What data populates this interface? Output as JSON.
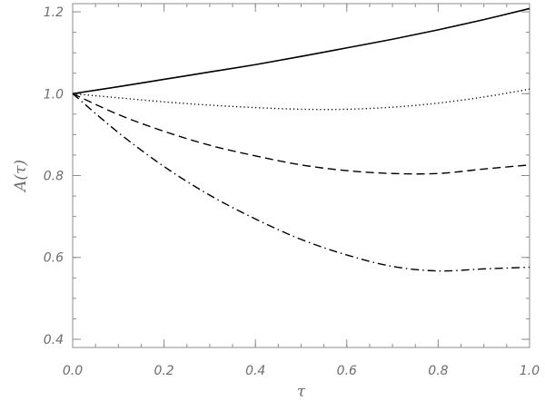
{
  "chart_data": {
    "type": "line",
    "title": "",
    "xlabel": "τ",
    "ylabel": "A(τ)",
    "xlim": [
      0.0,
      1.0
    ],
    "ylim": [
      0.38,
      1.22
    ],
    "x_ticks": [
      "0.0",
      "0.2",
      "0.4",
      "0.6",
      "0.8",
      "1.0"
    ],
    "y_ticks": [
      "0.4",
      "0.6",
      "0.8",
      "1.0",
      "1.2"
    ],
    "grid": false,
    "legend": false,
    "x": [
      0.0,
      0.1,
      0.2,
      0.3,
      0.4,
      0.5,
      0.6,
      0.7,
      0.8,
      0.9,
      1.0
    ],
    "series": [
      {
        "style": "solid",
        "values": [
          1.0,
          1.017,
          1.035,
          1.053,
          1.071,
          1.091,
          1.112,
          1.133,
          1.156,
          1.181,
          1.208
        ]
      },
      {
        "style": "dotted",
        "values": [
          1.0,
          0.99,
          0.98,
          0.972,
          0.966,
          0.962,
          0.962,
          0.967,
          0.977,
          0.992,
          1.011
        ]
      },
      {
        "style": "dashed",
        "values": [
          1.0,
          0.949,
          0.908,
          0.874,
          0.848,
          0.826,
          0.812,
          0.805,
          0.805,
          0.816,
          0.826
        ]
      },
      {
        "style": "dash-dot",
        "values": [
          1.0,
          0.905,
          0.822,
          0.752,
          0.694,
          0.644,
          0.606,
          0.578,
          0.567,
          0.572,
          0.576
        ]
      }
    ],
    "colors": {
      "lines": "#000000",
      "axes": "#8c8c8c",
      "text": "#6e6e6e"
    }
  }
}
